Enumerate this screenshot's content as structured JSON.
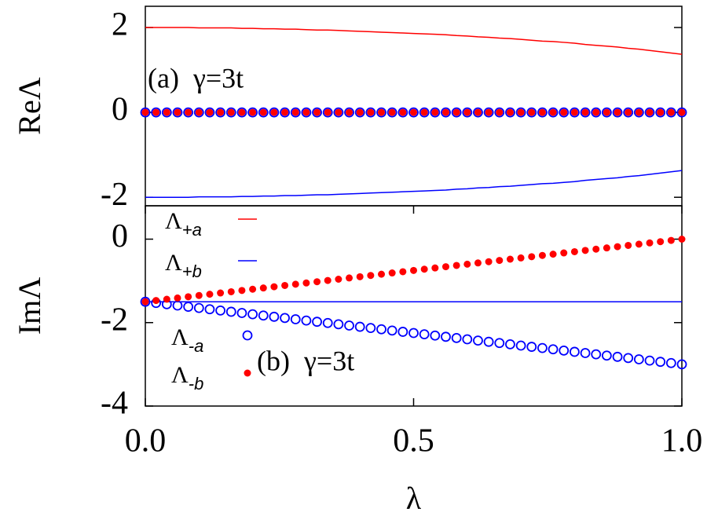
{
  "chart_data": [
    {
      "type": "line",
      "y_label": "ReΛ",
      "annotation": "(a)  γ=3t",
      "x": [
        0,
        0.02,
        0.04,
        0.06,
        0.08,
        0.1,
        0.12,
        0.14,
        0.16,
        0.18,
        0.2,
        0.22,
        0.24,
        0.26,
        0.28,
        0.3,
        0.32,
        0.34,
        0.36,
        0.38,
        0.4,
        0.42,
        0.44,
        0.46,
        0.48,
        0.5,
        0.52,
        0.54,
        0.56,
        0.58,
        0.6,
        0.62,
        0.64,
        0.66,
        0.68,
        0.7,
        0.72,
        0.74,
        0.76,
        0.78,
        0.8,
        0.82,
        0.84,
        0.86,
        0.88,
        0.9,
        0.92,
        0.94,
        0.96,
        0.98,
        1
      ],
      "xlim": [
        0,
        1
      ],
      "ylim": [
        -2.2,
        2.5
      ],
      "yticks": [
        2,
        0,
        -2
      ],
      "series": [
        {
          "color": "#ff0000",
          "marker": "none",
          "values": [
            2,
            2,
            2,
            2,
            2,
            1.99,
            1.99,
            1.99,
            1.99,
            1.98,
            1.98,
            1.97,
            1.97,
            1.96,
            1.96,
            1.95,
            1.94,
            1.94,
            1.93,
            1.92,
            1.91,
            1.9,
            1.89,
            1.88,
            1.87,
            1.86,
            1.85,
            1.84,
            1.83,
            1.81,
            1.8,
            1.78,
            1.77,
            1.75,
            1.74,
            1.72,
            1.7,
            1.68,
            1.67,
            1.65,
            1.63,
            1.6,
            1.58,
            1.56,
            1.54,
            1.51,
            1.49,
            1.46,
            1.43,
            1.4,
            1.37
          ]
        },
        {
          "color": "#0000ff",
          "marker": "none",
          "values": [
            -2,
            -2,
            -2,
            -2,
            -2,
            -1.99,
            -1.99,
            -1.99,
            -1.99,
            -1.98,
            -1.98,
            -1.97,
            -1.97,
            -1.96,
            -1.96,
            -1.95,
            -1.94,
            -1.94,
            -1.93,
            -1.92,
            -1.91,
            -1.9,
            -1.89,
            -1.88,
            -1.87,
            -1.86,
            -1.85,
            -1.84,
            -1.83,
            -1.81,
            -1.8,
            -1.78,
            -1.77,
            -1.75,
            -1.74,
            -1.72,
            -1.7,
            -1.68,
            -1.67,
            -1.65,
            -1.63,
            -1.6,
            -1.58,
            -1.56,
            -1.54,
            -1.51,
            -1.49,
            -1.46,
            -1.43,
            -1.4,
            -1.37
          ]
        },
        {
          "color": "#0000ff",
          "marker": "open-circle",
          "values": [
            0,
            0,
            0,
            0,
            0,
            0,
            0,
            0,
            0,
            0,
            0,
            0,
            0,
            0,
            0,
            0,
            0,
            0,
            0,
            0,
            0,
            0,
            0,
            0,
            0,
            0,
            0,
            0,
            0,
            0,
            0,
            0,
            0,
            0,
            0,
            0,
            0,
            0,
            0,
            0,
            0,
            0,
            0,
            0,
            0,
            0,
            0,
            0,
            0,
            0,
            0
          ]
        },
        {
          "color": "#ff0000",
          "marker": "dot",
          "values": [
            0,
            0,
            0,
            0,
            0,
            0,
            0,
            0,
            0,
            0,
            0,
            0,
            0,
            0,
            0,
            0,
            0,
            0,
            0,
            0,
            0,
            0,
            0,
            0,
            0,
            0,
            0,
            0,
            0,
            0,
            0,
            0,
            0,
            0,
            0,
            0,
            0,
            0,
            0,
            0,
            0,
            0,
            0,
            0,
            0,
            0,
            0,
            0,
            0,
            0,
            0
          ]
        }
      ]
    },
    {
      "type": "line",
      "y_label": "ImΛ",
      "x_label": "λ",
      "annotation": "(b)  γ=3t",
      "x": [
        0,
        0.02,
        0.04,
        0.06,
        0.08,
        0.1,
        0.12,
        0.14,
        0.16,
        0.18,
        0.2,
        0.22,
        0.24,
        0.26,
        0.28,
        0.3,
        0.32,
        0.34,
        0.36,
        0.38,
        0.4,
        0.42,
        0.44,
        0.46,
        0.48,
        0.5,
        0.52,
        0.54,
        0.56,
        0.58,
        0.6,
        0.62,
        0.64,
        0.66,
        0.68,
        0.7,
        0.72,
        0.74,
        0.76,
        0.78,
        0.8,
        0.82,
        0.84,
        0.86,
        0.88,
        0.9,
        0.92,
        0.94,
        0.96,
        0.98,
        1
      ],
      "xlim": [
        0,
        1
      ],
      "xticks": [
        {
          "value": 0,
          "label": "0.0"
        },
        0.5,
        {
          "value": 1,
          "label": "1.0"
        }
      ],
      "ylim": [
        -4,
        0.8
      ],
      "yticks": [
        0,
        -2,
        -4
      ],
      "legend": true,
      "series": [
        {
          "name": "Λ+a",
          "color": "#ff0000",
          "marker": "none",
          "values": [
            -1.5,
            -1.5,
            -1.5,
            -1.5,
            -1.5,
            -1.5,
            -1.5,
            -1.5,
            -1.5,
            -1.5,
            -1.5,
            -1.5,
            -1.5,
            -1.5,
            -1.5,
            -1.5,
            -1.5,
            -1.5,
            -1.5,
            -1.5,
            -1.5,
            -1.5,
            -1.5,
            -1.5,
            -1.5,
            -1.5,
            -1.5,
            -1.5,
            -1.5,
            -1.5,
            -1.5,
            -1.5,
            -1.5,
            -1.5,
            -1.5,
            -1.5,
            -1.5,
            -1.5,
            -1.5,
            -1.5,
            -1.5,
            -1.5,
            -1.5,
            -1.5,
            -1.5,
            -1.5,
            -1.5,
            -1.5,
            -1.5,
            -1.5,
            -1.5
          ]
        },
        {
          "name": "Λ+b",
          "color": "#0000ff",
          "marker": "none",
          "values": [
            -1.5,
            -1.5,
            -1.5,
            -1.5,
            -1.5,
            -1.5,
            -1.5,
            -1.5,
            -1.5,
            -1.5,
            -1.5,
            -1.5,
            -1.5,
            -1.5,
            -1.5,
            -1.5,
            -1.5,
            -1.5,
            -1.5,
            -1.5,
            -1.5,
            -1.5,
            -1.5,
            -1.5,
            -1.5,
            -1.5,
            -1.5,
            -1.5,
            -1.5,
            -1.5,
            -1.5,
            -1.5,
            -1.5,
            -1.5,
            -1.5,
            -1.5,
            -1.5,
            -1.5,
            -1.5,
            -1.5,
            -1.5,
            -1.5,
            -1.5,
            -1.5,
            -1.5,
            -1.5,
            -1.5,
            -1.5,
            -1.5,
            -1.5,
            -1.5
          ]
        },
        {
          "name": "Λ-a",
          "color": "#0000ff",
          "marker": "open-circle",
          "values": [
            -1.5,
            -1.53,
            -1.56,
            -1.59,
            -1.62,
            -1.65,
            -1.68,
            -1.71,
            -1.74,
            -1.77,
            -1.8,
            -1.83,
            -1.86,
            -1.89,
            -1.92,
            -1.95,
            -1.98,
            -2.01,
            -2.04,
            -2.07,
            -2.1,
            -2.13,
            -2.16,
            -2.19,
            -2.22,
            -2.25,
            -2.28,
            -2.31,
            -2.34,
            -2.37,
            -2.4,
            -2.43,
            -2.46,
            -2.49,
            -2.52,
            -2.55,
            -2.58,
            -2.61,
            -2.64,
            -2.67,
            -2.7,
            -2.73,
            -2.76,
            -2.79,
            -2.82,
            -2.85,
            -2.88,
            -2.91,
            -2.94,
            -2.97,
            -3
          ]
        },
        {
          "name": "Λ-b",
          "color": "#ff0000",
          "marker": "dot",
          "values": [
            -1.5,
            -1.47,
            -1.44,
            -1.41,
            -1.38,
            -1.35,
            -1.32,
            -1.29,
            -1.26,
            -1.23,
            -1.2,
            -1.17,
            -1.14,
            -1.11,
            -1.08,
            -1.05,
            -1.02,
            -0.99,
            -0.96,
            -0.93,
            -0.9,
            -0.87,
            -0.84,
            -0.81,
            -0.78,
            -0.75,
            -0.72,
            -0.69,
            -0.66,
            -0.63,
            -0.6,
            -0.57,
            -0.54,
            -0.51,
            -0.48,
            -0.45,
            -0.42,
            -0.39,
            -0.36,
            -0.33,
            -0.3,
            -0.27,
            -0.24,
            -0.21,
            -0.18,
            -0.15,
            -0.12,
            -0.09,
            -0.06,
            -0.03,
            0
          ]
        }
      ]
    }
  ]
}
